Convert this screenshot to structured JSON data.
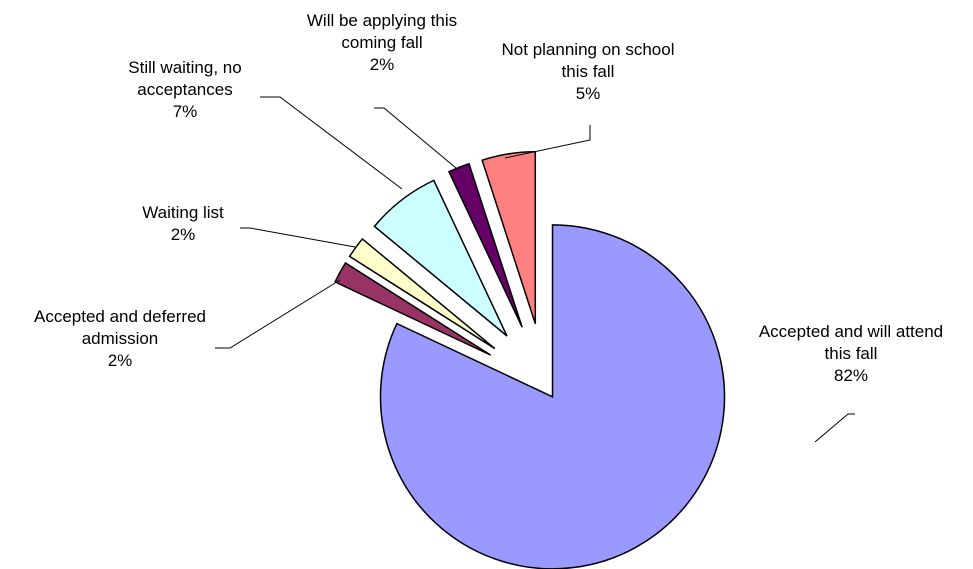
{
  "chart_data": {
    "type": "pie",
    "exploded": true,
    "slices": [
      {
        "label_lines": [
          "Accepted and will attend",
          "this fall"
        ],
        "percent_label": "82%",
        "value": 82,
        "color": "#9999ff"
      },
      {
        "label_lines": [
          "Accepted and deferred",
          "admission"
        ],
        "percent_label": "2%",
        "value": 2,
        "color": "#993366"
      },
      {
        "label_lines": [
          "Waiting list"
        ],
        "percent_label": "2%",
        "value": 2,
        "color": "#ffffcc"
      },
      {
        "label_lines": [
          "Still waiting, no",
          "acceptances"
        ],
        "percent_label": "7%",
        "value": 7,
        "color": "#ccffff"
      },
      {
        "label_lines": [
          "Will be applying this",
          "coming fall"
        ],
        "percent_label": "2%",
        "value": 2,
        "color": "#660066"
      },
      {
        "label_lines": [
          "Not planning on school",
          "this fall"
        ],
        "percent_label": "5%",
        "value": 5,
        "color": "#ff8080"
      }
    ]
  }
}
